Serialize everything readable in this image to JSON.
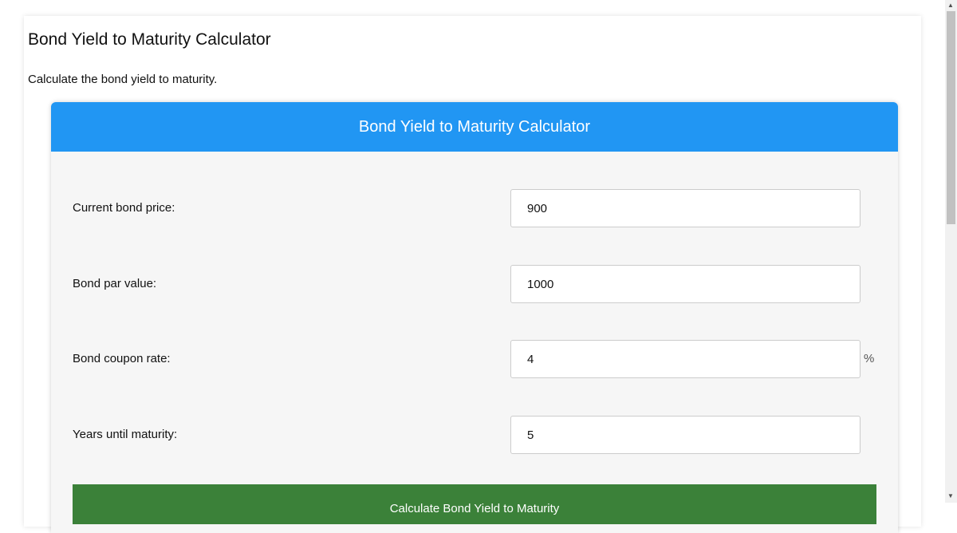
{
  "page": {
    "title": "Bond Yield to Maturity Calculator",
    "description": "Calculate the bond yield to maturity."
  },
  "calculator": {
    "header": "Bond Yield to Maturity Calculator",
    "fields": [
      {
        "label": "Current bond price:",
        "value": "900",
        "unit": ""
      },
      {
        "label": "Bond par value:",
        "value": "1000",
        "unit": ""
      },
      {
        "label": "Bond coupon rate:",
        "value": "4",
        "unit": "%"
      },
      {
        "label": "Years until maturity:",
        "value": "5",
        "unit": ""
      }
    ],
    "button": "Calculate Bond Yield to Maturity"
  },
  "colors": {
    "header": "#2196f3",
    "button": "#3b8139"
  },
  "scrollbar": {
    "up": "▲",
    "down": "▼"
  }
}
